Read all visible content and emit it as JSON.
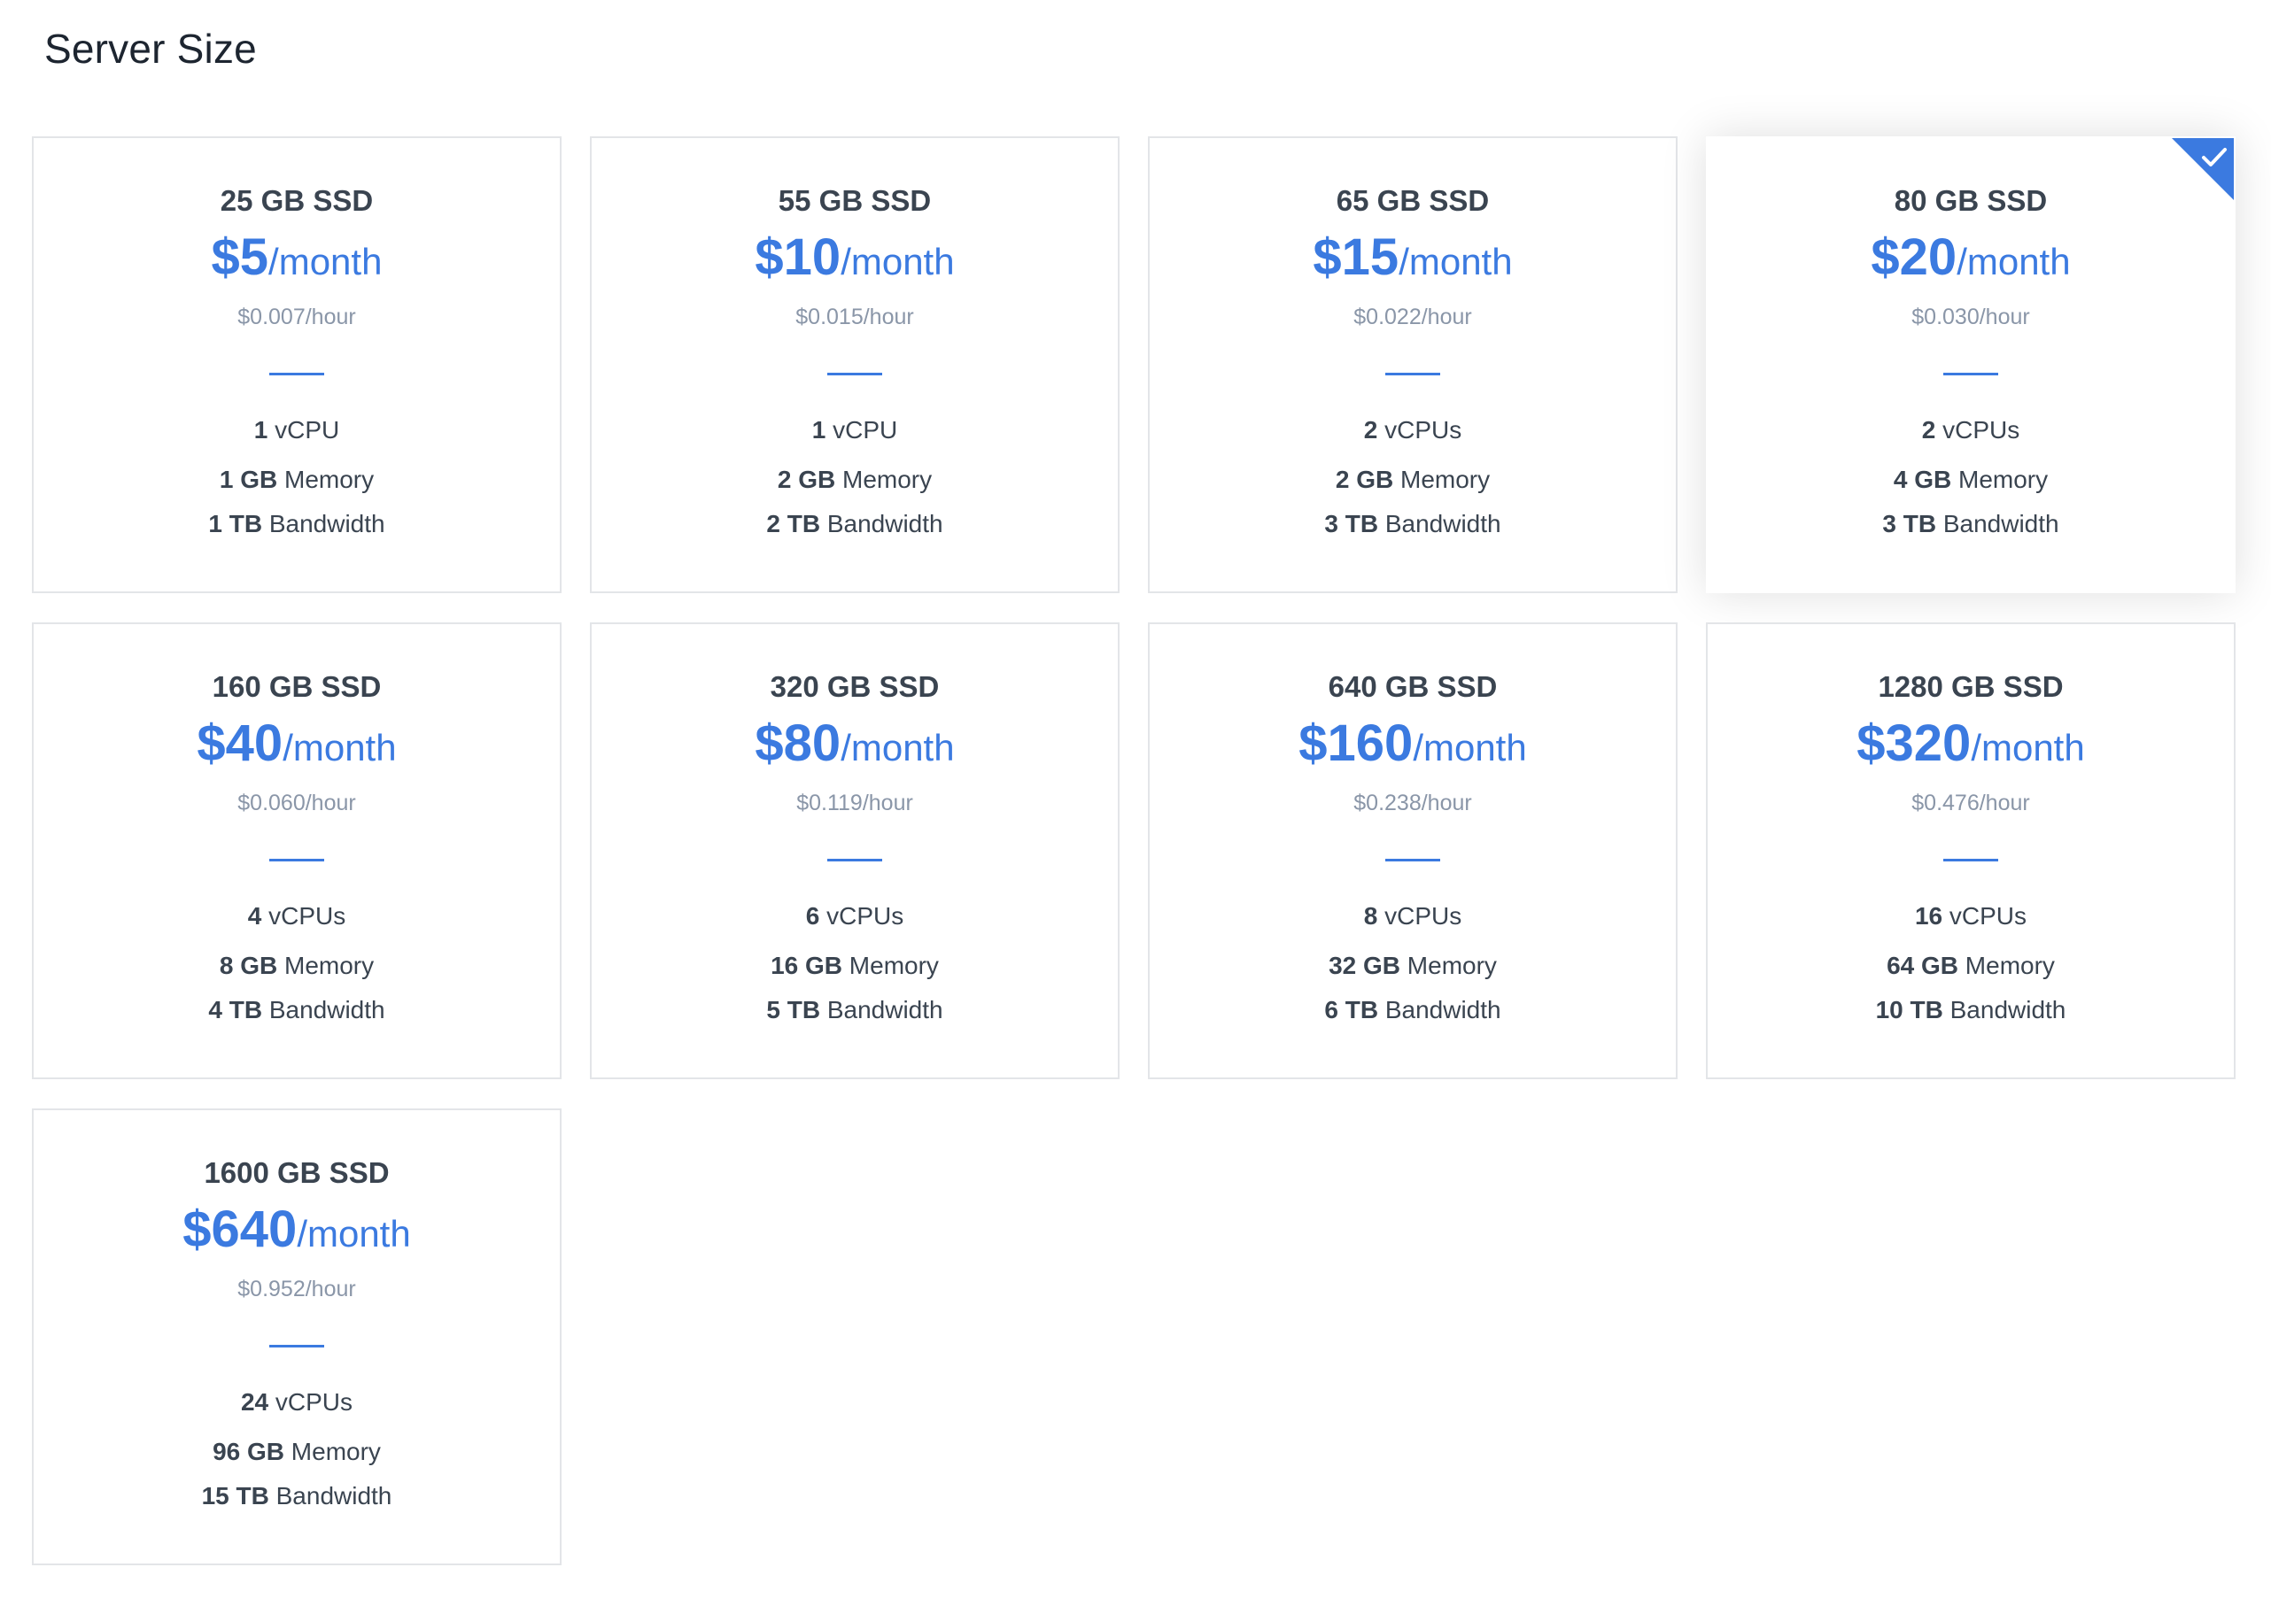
{
  "page": {
    "title": "Server Size"
  },
  "colors": {
    "accent": "#3b7ae0",
    "muted": "#8a96a8",
    "text": "#3a4450",
    "border": "#e3e5e8"
  },
  "plans": [
    {
      "disk": "25 GB SSD",
      "price": "$5",
      "unit": "/month",
      "hourly": "$0.007/hour",
      "cpu_val": "1",
      "cpu_label": "vCPU",
      "mem_val": "1 GB",
      "mem_label": "Memory",
      "bw_val": "1 TB",
      "bw_label": "Bandwidth",
      "selected": false
    },
    {
      "disk": "55 GB SSD",
      "price": "$10",
      "unit": "/month",
      "hourly": "$0.015/hour",
      "cpu_val": "1",
      "cpu_label": "vCPU",
      "mem_val": "2 GB",
      "mem_label": "Memory",
      "bw_val": "2 TB",
      "bw_label": "Bandwidth",
      "selected": false
    },
    {
      "disk": "65 GB SSD",
      "price": "$15",
      "unit": "/month",
      "hourly": "$0.022/hour",
      "cpu_val": "2",
      "cpu_label": "vCPUs",
      "mem_val": "2 GB",
      "mem_label": "Memory",
      "bw_val": "3 TB",
      "bw_label": "Bandwidth",
      "selected": false
    },
    {
      "disk": "80 GB SSD",
      "price": "$20",
      "unit": "/month",
      "hourly": "$0.030/hour",
      "cpu_val": "2",
      "cpu_label": "vCPUs",
      "mem_val": "4 GB",
      "mem_label": "Memory",
      "bw_val": "3 TB",
      "bw_label": "Bandwidth",
      "selected": true
    },
    {
      "disk": "160 GB SSD",
      "price": "$40",
      "unit": "/month",
      "hourly": "$0.060/hour",
      "cpu_val": "4",
      "cpu_label": "vCPUs",
      "mem_val": "8 GB",
      "mem_label": "Memory",
      "bw_val": "4 TB",
      "bw_label": "Bandwidth",
      "selected": false
    },
    {
      "disk": "320 GB SSD",
      "price": "$80",
      "unit": "/month",
      "hourly": "$0.119/hour",
      "cpu_val": "6",
      "cpu_label": "vCPUs",
      "mem_val": "16 GB",
      "mem_label": "Memory",
      "bw_val": "5 TB",
      "bw_label": "Bandwidth",
      "selected": false
    },
    {
      "disk": "640 GB SSD",
      "price": "$160",
      "unit": "/month",
      "hourly": "$0.238/hour",
      "cpu_val": "8",
      "cpu_label": "vCPUs",
      "mem_val": "32 GB",
      "mem_label": "Memory",
      "bw_val": "6 TB",
      "bw_label": "Bandwidth",
      "selected": false
    },
    {
      "disk": "1280 GB SSD",
      "price": "$320",
      "unit": "/month",
      "hourly": "$0.476/hour",
      "cpu_val": "16",
      "cpu_label": "vCPUs",
      "mem_val": "64 GB",
      "mem_label": "Memory",
      "bw_val": "10 TB",
      "bw_label": "Bandwidth",
      "selected": false
    },
    {
      "disk": "1600 GB SSD",
      "price": "$640",
      "unit": "/month",
      "hourly": "$0.952/hour",
      "cpu_val": "24",
      "cpu_label": "vCPUs",
      "mem_val": "96 GB",
      "mem_label": "Memory",
      "bw_val": "15 TB",
      "bw_label": "Bandwidth",
      "selected": false
    }
  ]
}
